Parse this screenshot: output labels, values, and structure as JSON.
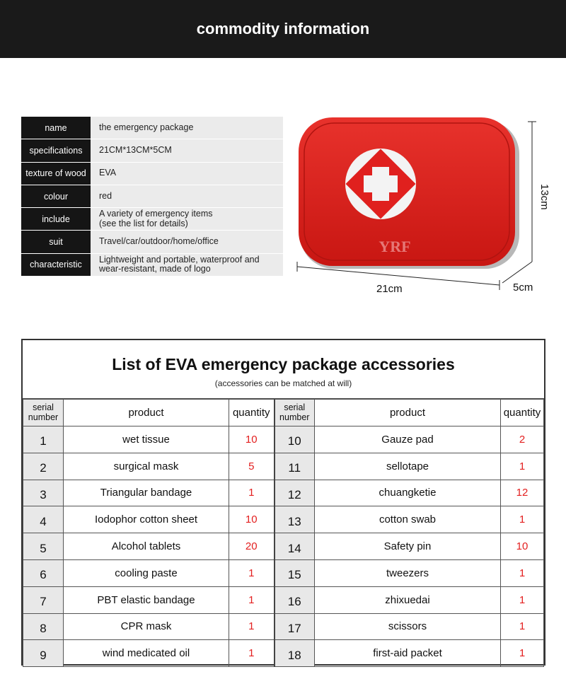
{
  "header": {
    "title": "commodity information"
  },
  "info": [
    {
      "label": "name",
      "value": "the emergency package"
    },
    {
      "label": "specifications",
      "value": "21CM*13CM*5CM"
    },
    {
      "label": "texture of wood",
      "value": "EVA"
    },
    {
      "label": "colour",
      "value": "red"
    },
    {
      "label": "include",
      "value": "A variety of emergency items\n (see the list for details)"
    },
    {
      "label": "suit",
      "value": "Travel/car/outdoor/home/office"
    },
    {
      "label": "characteristic",
      "value": "Lightweight and portable, waterproof and\nwear-resistant, made of logo"
    }
  ],
  "product_image": {
    "watermark": "YRF",
    "watermark_url": "www.yrftextile.com",
    "width": "21cm",
    "height": "13cm",
    "depth": "5cm",
    "color": "#e0201e"
  },
  "accessories": {
    "title": "List of EVA emergency package accessories",
    "subtitle": "(accessories can be matched at will)",
    "headers": {
      "serial": "serial number",
      "product": "product",
      "quantity": "quantity"
    },
    "left": [
      {
        "no": "1",
        "product": "wet tissue",
        "qty": "10"
      },
      {
        "no": "2",
        "product": "surgical mask",
        "qty": "5"
      },
      {
        "no": "3",
        "product": "Triangular bandage",
        "qty": "1"
      },
      {
        "no": "4",
        "product": "Iodophor cotton sheet",
        "qty": "10"
      },
      {
        "no": "5",
        "product": "Alcohol tablets",
        "qty": "20"
      },
      {
        "no": "6",
        "product": "cooling paste",
        "qty": "1"
      },
      {
        "no": "7",
        "product": "PBT elastic bandage",
        "qty": "1"
      },
      {
        "no": "8",
        "product": "CPR mask",
        "qty": "1"
      },
      {
        "no": "9",
        "product": "wind medicated oil",
        "qty": "1"
      }
    ],
    "right": [
      {
        "no": "10",
        "product": "Gauze pad",
        "qty": "2"
      },
      {
        "no": "11",
        "product": "sellotape",
        "qty": "1"
      },
      {
        "no": "12",
        "product": "chuangketie",
        "qty": "12"
      },
      {
        "no": "13",
        "product": "cotton swab",
        "qty": "1"
      },
      {
        "no": "14",
        "product": "Safety pin",
        "qty": "10"
      },
      {
        "no": "15",
        "product": "tweezers",
        "qty": "1"
      },
      {
        "no": "16",
        "product": "zhixuedai",
        "qty": "1"
      },
      {
        "no": "17",
        "product": "scissors",
        "qty": "1"
      },
      {
        "no": "18",
        "product": "first-aid packet",
        "qty": "1"
      }
    ]
  }
}
